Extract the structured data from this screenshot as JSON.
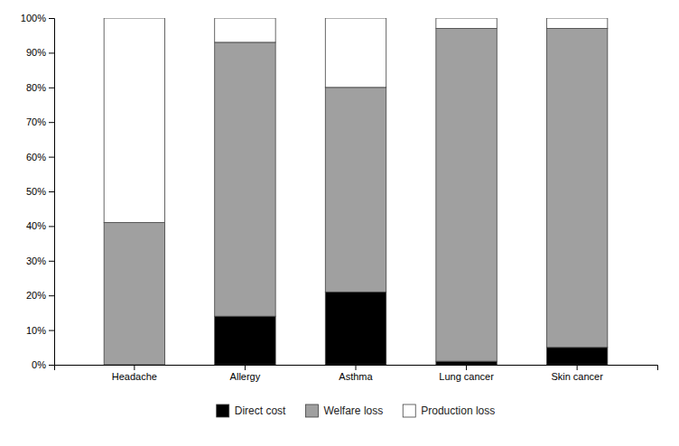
{
  "chart_data": {
    "type": "bar",
    "stacked": true,
    "grid": false,
    "legend": "bottom",
    "categories": [
      "Headache",
      "Allergy",
      "Asthma",
      "Lung cancer",
      "Skin cancer"
    ],
    "series": [
      {
        "name": "Direct cost",
        "color": "#000000",
        "values": [
          0,
          14,
          21,
          1,
          5
        ]
      },
      {
        "name": "Welfare loss",
        "color": "#a0a0a0",
        "values": [
          41,
          79,
          59,
          96,
          92
        ]
      },
      {
        "name": "Production loss",
        "color": "#ffffff",
        "values": [
          59,
          7,
          20,
          3,
          3
        ]
      }
    ],
    "ylim": [
      0,
      100
    ],
    "yticks": [
      {
        "value": 0,
        "label": "0%"
      },
      {
        "value": 10,
        "label": "10%"
      },
      {
        "value": 20,
        "label": "20%"
      },
      {
        "value": 30,
        "label": "30%"
      },
      {
        "value": 40,
        "label": "40%"
      },
      {
        "value": 50,
        "label": "50%"
      },
      {
        "value": 60,
        "label": "60%"
      },
      {
        "value": 70,
        "label": "70%"
      },
      {
        "value": 80,
        "label": "80%"
      },
      {
        "value": 90,
        "label": "90%"
      },
      {
        "value": 100,
        "label": "100%"
      }
    ]
  }
}
